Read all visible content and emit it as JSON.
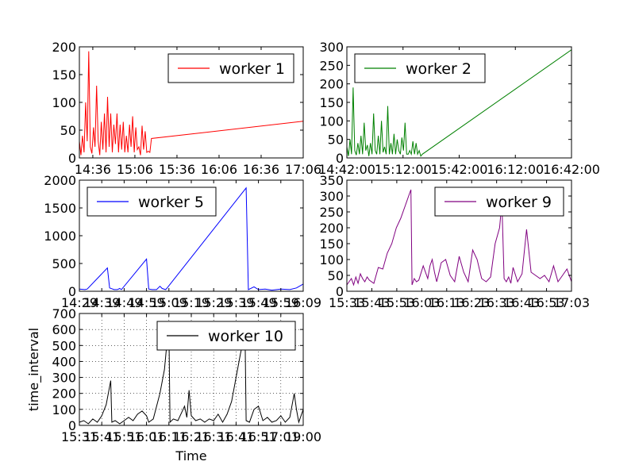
{
  "chart_data": [
    {
      "type": "line",
      "series": [
        {
          "name": "worker 1",
          "color": "#ff0000"
        }
      ],
      "ylim": [
        0,
        200
      ],
      "yticks": [
        0,
        50,
        100,
        150,
        200
      ],
      "xtick_labels": [
        "14:36",
        "15:06",
        "15:36",
        "16:06",
        "16:36",
        "17:06"
      ],
      "legend_position": "upper right",
      "xlabel": "",
      "ylabel": ""
    },
    {
      "type": "line",
      "series": [
        {
          "name": "worker 2",
          "color": "#008000"
        }
      ],
      "ylim": [
        0,
        300
      ],
      "yticks": [
        0,
        50,
        100,
        150,
        200,
        250,
        300
      ],
      "xtick_labels": [
        "14:42:00",
        "15:12:00",
        "15:42:00",
        "16:12:00",
        "16:42:00"
      ],
      "legend_position": "upper left",
      "xlabel": "",
      "ylabel": ""
    },
    {
      "type": "line",
      "series": [
        {
          "name": "worker 5",
          "color": "#0000ff"
        }
      ],
      "ylim": [
        0,
        2000
      ],
      "yticks": [
        0,
        500,
        1000,
        1500,
        2000
      ],
      "xtick_labels": [
        "14:29",
        "14:39",
        "14:49",
        "14:59",
        "15:09",
        "15:19",
        "15:29",
        "15:39",
        "15:49",
        "15:59",
        "16:09"
      ],
      "legend_position": "upper left",
      "xlabel": "",
      "ylabel": ""
    },
    {
      "type": "line",
      "series": [
        {
          "name": "worker 9",
          "color": "#800080"
        }
      ],
      "ylim": [
        0,
        350
      ],
      "yticks": [
        0,
        50,
        100,
        150,
        200,
        250,
        300,
        350
      ],
      "xtick_labels": [
        "15:33",
        "15:43",
        "15:53",
        "16:03",
        "16:13",
        "16:23",
        "16:33",
        "16:43",
        "16:53",
        "17:03"
      ],
      "legend_position": "upper right",
      "xlabel": "",
      "ylabel": ""
    },
    {
      "type": "line",
      "series": [
        {
          "name": "worker 10",
          "color": "#000000"
        }
      ],
      "ylim": [
        0,
        700
      ],
      "yticks": [
        0,
        100,
        200,
        300,
        400,
        500,
        600,
        700
      ],
      "xtick_labels": [
        "15:31",
        "15:41",
        "15:51",
        "16:01",
        "16:11",
        "16:21",
        "16:31",
        "16:41",
        "16:51",
        "17:01",
        "19:00"
      ],
      "legend_position": "upper right",
      "grid": true,
      "xlabel": "Time",
      "ylabel": "time_interval"
    }
  ]
}
